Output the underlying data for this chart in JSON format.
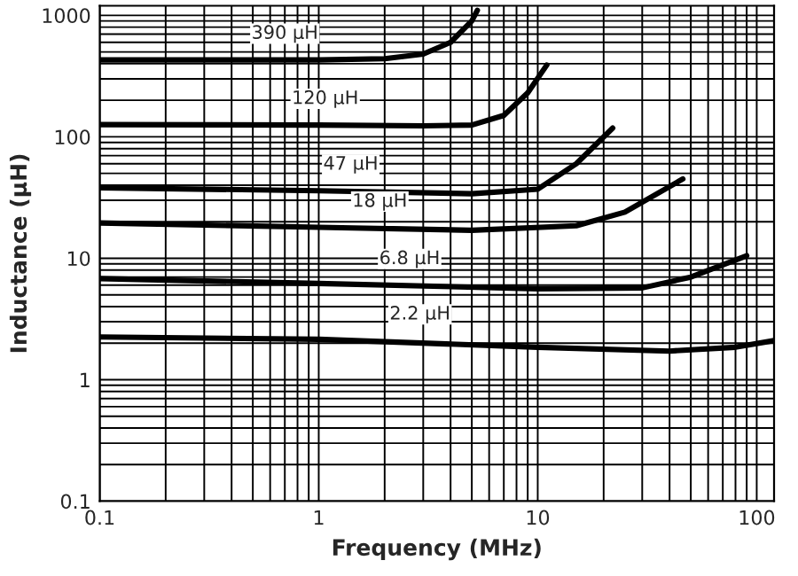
{
  "chart_data": {
    "type": "line",
    "xlabel": "Frequency (MHz)",
    "ylabel": "Inductance (µH)",
    "log": "xy",
    "grid": true,
    "xlim": [
      0.1,
      120
    ],
    "xticks": [
      0.1,
      1,
      10,
      100
    ],
    "ylim": [
      0.1,
      1200
    ],
    "yticks": [
      0.1,
      1,
      10,
      100,
      1000
    ],
    "series": [
      {
        "color": "#000000",
        "x": [
          0.1,
          1,
          2,
          3,
          4,
          5,
          5.3
        ],
        "values": [
          430,
          430,
          440,
          480,
          600,
          900,
          1100
        ]
      },
      {
        "color": "#000000",
        "x": [
          0.1,
          1,
          3,
          5,
          7,
          9,
          11
        ],
        "values": [
          126,
          125,
          123,
          125,
          150,
          230,
          390
        ]
      },
      {
        "color": "#000000",
        "x": [
          0.1,
          1,
          5,
          10,
          15,
          22
        ],
        "values": [
          38,
          36,
          34,
          37,
          60,
          118
        ]
      },
      {
        "color": "#000000",
        "x": [
          0.1,
          1,
          5,
          15,
          25,
          46
        ],
        "values": [
          19.5,
          18,
          17,
          18.5,
          24,
          45
        ]
      },
      {
        "color": "#000000",
        "x": [
          0.1,
          1,
          10,
          30,
          50,
          90
        ],
        "values": [
          6.8,
          6.2,
          5.6,
          5.7,
          7,
          10.5
        ]
      },
      {
        "color": "#000000",
        "x": [
          0.1,
          1,
          10,
          40,
          80,
          120
        ],
        "values": [
          2.25,
          2.15,
          1.85,
          1.72,
          1.85,
          2.1
        ]
      }
    ],
    "annotations": [
      {
        "text": "390 µH",
        "x": 0.7,
        "y": 430
      },
      {
        "text": "120 µH",
        "x": 1.07,
        "y": 125
      },
      {
        "text": "47 µH",
        "x": 1.4,
        "y": 36
      },
      {
        "text": "18 µH",
        "x": 1.9,
        "y": 17.8
      },
      {
        "text": "6.8 µH",
        "x": 2.6,
        "y": 6
      },
      {
        "text": "2.2 µH",
        "x": 2.9,
        "y": 2.1
      }
    ]
  }
}
